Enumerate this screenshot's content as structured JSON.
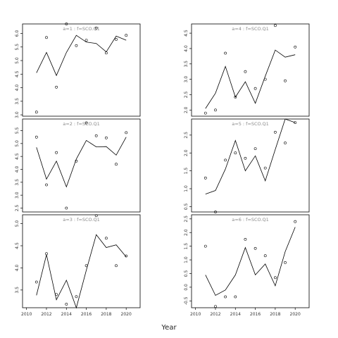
{
  "xlabel": "Year",
  "chart_data": [
    {
      "type": "line+scatter",
      "title": "a=1 : f=SCO.Q1",
      "x_ticks": [],
      "y_ticks": [
        3.0,
        3.5,
        4.0,
        4.5,
        5.0,
        5.5,
        6.0
      ],
      "xlim": [
        2009.6,
        2021.4
      ],
      "ylim": [
        2.95,
        6.35
      ],
      "line": {
        "x": [
          2011,
          2012,
          2013,
          2014,
          2015,
          2016,
          2017,
          2018,
          2019,
          2020
        ],
        "y": [
          4.55,
          5.3,
          4.45,
          5.3,
          5.93,
          5.68,
          5.63,
          5.32,
          5.9,
          5.75
        ]
      },
      "points": {
        "x": [
          2011,
          2012,
          2013,
          2014,
          2015,
          2016,
          2017,
          2018,
          2019,
          2020
        ],
        "y": [
          3.1,
          5.85,
          4.02,
          6.35,
          5.55,
          5.75,
          6.2,
          5.28,
          5.78,
          5.93
        ]
      }
    },
    {
      "type": "line+scatter",
      "title": "a=4 : f=SCO.Q1",
      "x_ticks": [],
      "y_ticks": [
        2.0,
        2.5,
        3.0,
        3.5,
        4.0,
        4.5
      ],
      "xlim": [
        2009.6,
        2021.4
      ],
      "ylim": [
        1.8,
        4.8
      ],
      "line": {
        "x": [
          2011,
          2012,
          2013,
          2014,
          2015,
          2016,
          2017,
          2018,
          2019,
          2020
        ],
        "y": [
          2.05,
          2.55,
          3.42,
          2.42,
          2.92,
          2.22,
          3.1,
          3.95,
          3.72,
          3.8
        ]
      },
      "points": {
        "x": [
          2011,
          2012,
          2013,
          2014,
          2015,
          2016,
          2017,
          2018,
          2019,
          2020
        ],
        "y": [
          1.9,
          2.0,
          3.85,
          2.42,
          3.25,
          2.7,
          3.0,
          4.75,
          2.95,
          4.05
        ]
      }
    },
    {
      "type": "line+scatter",
      "title": "a=2 : f=SCO.Q1",
      "x_ticks": [],
      "y_ticks": [
        2.5,
        3.0,
        3.5,
        4.0,
        4.5,
        5.0,
        5.5
      ],
      "xlim": [
        2009.6,
        2021.4
      ],
      "ylim": [
        2.35,
        5.95
      ],
      "line": {
        "x": [
          2011,
          2012,
          2013,
          2014,
          2015,
          2016,
          2017,
          2018,
          2019,
          2020
        ],
        "y": [
          4.85,
          3.62,
          4.32,
          3.32,
          4.4,
          5.12,
          4.87,
          4.88,
          4.55,
          5.25
        ]
      },
      "points": {
        "x": [
          2011,
          2012,
          2013,
          2014,
          2015,
          2016,
          2017,
          2018,
          2019,
          2020
        ],
        "y": [
          5.25,
          3.4,
          4.65,
          2.5,
          4.32,
          5.8,
          5.3,
          5.22,
          4.2,
          5.42
        ]
      }
    },
    {
      "type": "line+scatter",
      "title": "a=5 : f=SCO.Q1",
      "x_ticks": [],
      "y_ticks": [
        0.5,
        1.0,
        1.5,
        2.0,
        2.5
      ],
      "xlim": [
        2009.6,
        2021.4
      ],
      "ylim": [
        0.35,
        2.95
      ],
      "line": {
        "x": [
          2011,
          2012,
          2013,
          2014,
          2015,
          2016,
          2017,
          2018,
          2019,
          2020
        ],
        "y": [
          0.85,
          0.95,
          1.55,
          2.35,
          1.5,
          1.92,
          1.22,
          2.1,
          2.95,
          2.85
        ]
      },
      "points": {
        "x": [
          2011,
          2012,
          2013,
          2014,
          2015,
          2016,
          2017,
          2018,
          2019,
          2020
        ],
        "y": [
          1.3,
          0.35,
          1.8,
          2.0,
          1.85,
          2.12,
          1.58,
          2.58,
          2.28,
          2.85
        ]
      }
    },
    {
      "type": "line+scatter",
      "title": "a=3 : f=SCO.Q1",
      "x_ticks": [
        2010,
        2012,
        2014,
        2016,
        2018,
        2020
      ],
      "y_ticks": [
        3.5,
        4.0,
        4.5,
        5.0
      ],
      "xlim": [
        2009.6,
        2021.4
      ],
      "ylim": [
        3.1,
        5.2
      ],
      "line": {
        "x": [
          2011,
          2012,
          2013,
          2014,
          2015,
          2016,
          2017,
          2018,
          2019,
          2020
        ],
        "y": [
          3.38,
          4.3,
          3.28,
          3.72,
          3.1,
          3.95,
          4.75,
          4.46,
          4.52,
          4.25
        ]
      },
      "points": {
        "x": [
          2011,
          2012,
          2013,
          2014,
          2015,
          2016,
          2017,
          2018,
          2019,
          2020
        ],
        "y": [
          3.68,
          4.32,
          3.4,
          3.18,
          3.35,
          4.05,
          5.18,
          4.67,
          4.05,
          4.27
        ]
      }
    },
    {
      "type": "line+scatter",
      "title": "a=6 : f=SCO.Q1",
      "x_ticks": [
        2010,
        2012,
        2014,
        2016,
        2018,
        2020
      ],
      "y_ticks": [
        -0.5,
        0.0,
        0.5,
        1.0,
        1.5,
        2.0,
        2.5
      ],
      "xlim": [
        2009.6,
        2021.4
      ],
      "ylim": [
        -0.75,
        2.65
      ],
      "line": {
        "x": [
          2011,
          2012,
          2013,
          2014,
          2015,
          2016,
          2017,
          2018,
          2019,
          2020
        ],
        "y": [
          0.45,
          -0.3,
          -0.1,
          0.45,
          1.45,
          0.45,
          0.85,
          0.05,
          1.3,
          2.2
        ]
      },
      "points": {
        "x": [
          2011,
          2012,
          2013,
          2014,
          2015,
          2016,
          2017,
          2018,
          2019,
          2020
        ],
        "y": [
          1.5,
          -0.7,
          -0.35,
          -0.35,
          1.75,
          1.42,
          1.15,
          0.35,
          0.9,
          2.4
        ]
      }
    }
  ]
}
